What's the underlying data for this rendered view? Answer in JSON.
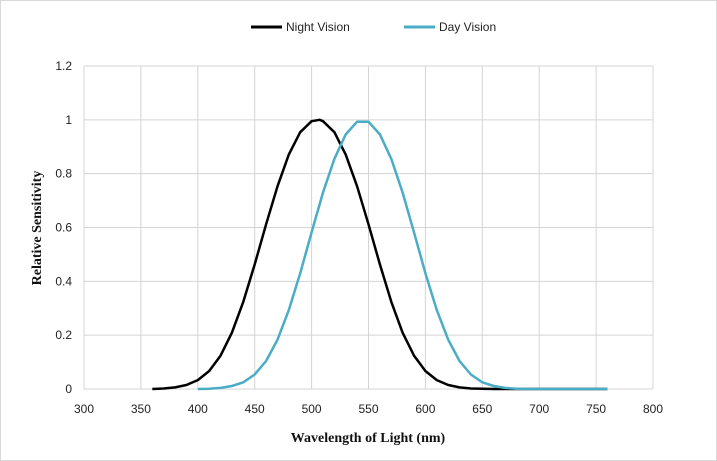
{
  "chart_data": {
    "type": "line",
    "title": "",
    "xlabel": "Wavelength of Light (nm)",
    "ylabel": "Relative Sensitivity",
    "xlim": [
      300,
      800
    ],
    "ylim": [
      0,
      1.2
    ],
    "x_ticks": [
      300,
      350,
      400,
      450,
      500,
      550,
      600,
      650,
      700,
      750,
      800
    ],
    "y_ticks": [
      0,
      0.2,
      0.4,
      0.6,
      0.8,
      1,
      1.2
    ],
    "grid": true,
    "legend_position": "top-center",
    "series": [
      {
        "name": "Night Vision",
        "color": "#000000",
        "x": [
          360,
          370,
          380,
          390,
          400,
          410,
          420,
          430,
          440,
          450,
          460,
          470,
          480,
          490,
          500,
          507,
          510,
          520,
          530,
          540,
          550,
          560,
          570,
          580,
          590,
          600,
          610,
          620,
          630,
          640,
          650,
          660,
          670,
          680,
          690,
          700,
          710,
          720,
          730,
          740,
          750,
          760
        ],
        "y": [
          0.0,
          0.002,
          0.006,
          0.015,
          0.033,
          0.067,
          0.124,
          0.209,
          0.324,
          0.463,
          0.612,
          0.753,
          0.871,
          0.954,
          0.995,
          1.0,
          0.995,
          0.954,
          0.871,
          0.753,
          0.612,
          0.463,
          0.324,
          0.209,
          0.124,
          0.067,
          0.033,
          0.015,
          0.006,
          0.002,
          0.001,
          0.0,
          0.0,
          0.0,
          0.0,
          0.0,
          0.0,
          0.0,
          0.0,
          0.0,
          0.0,
          0.0
        ]
      },
      {
        "name": "Day Vision",
        "color": "#4bacc6",
        "x": [
          400,
          410,
          420,
          430,
          440,
          450,
          460,
          470,
          480,
          490,
          500,
          510,
          520,
          530,
          540,
          550,
          560,
          570,
          580,
          590,
          600,
          610,
          620,
          630,
          640,
          650,
          660,
          670,
          680,
          690,
          700,
          710,
          720,
          730,
          740,
          750,
          760
        ],
        "y": [
          0.0,
          0.001,
          0.004,
          0.011,
          0.025,
          0.054,
          0.104,
          0.183,
          0.293,
          0.43,
          0.582,
          0.73,
          0.855,
          0.946,
          0.993,
          0.993,
          0.946,
          0.855,
          0.73,
          0.582,
          0.43,
          0.293,
          0.183,
          0.104,
          0.054,
          0.025,
          0.011,
          0.004,
          0.001,
          0.0,
          0.0,
          0.0,
          0.0,
          0.0,
          0.0,
          0.0,
          0.0
        ]
      }
    ]
  }
}
